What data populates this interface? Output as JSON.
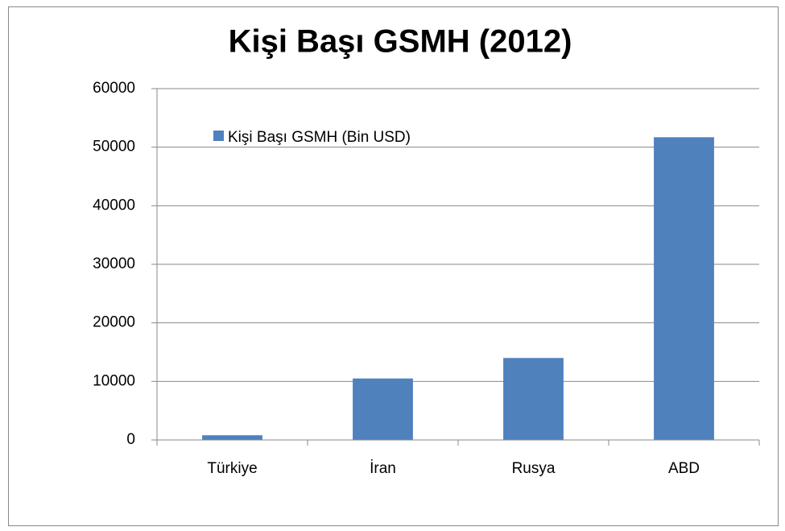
{
  "chart_data": {
    "type": "bar",
    "title": "Kişi Başı GSMH (2012)",
    "categories": [
      "Türkiye",
      "İran",
      "Rusya",
      "ABD"
    ],
    "series": [
      {
        "name": "Kişi Başı GSMH (Bin USD)",
        "color": "#4f81bd",
        "values": [
          800,
          10500,
          14000,
          51700
        ]
      }
    ],
    "ylim": [
      0,
      60000
    ],
    "yticks": [
      0,
      10000,
      20000,
      30000,
      40000,
      50000,
      60000
    ],
    "grid": true,
    "legend": "top-left"
  }
}
